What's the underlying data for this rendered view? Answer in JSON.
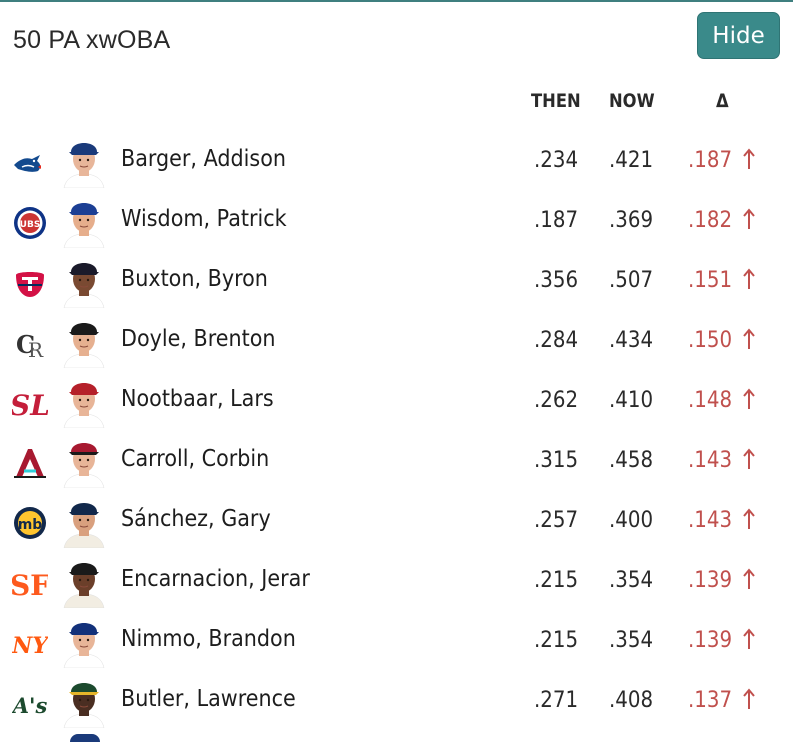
{
  "title": "50 PA xwOBA",
  "hide_label": "Hide",
  "columns": {
    "then": "THEN",
    "now": "NOW",
    "delta": "Δ"
  },
  "colors": {
    "accent": "#3a8a8a",
    "increase": "#c0504d"
  },
  "rows": [
    {
      "team_icon": "blue-jays-logo-icon",
      "name": "Barger, Addison",
      "then": ".234",
      "now": ".421",
      "delta": ".187",
      "cap": "#1a3a7a",
      "bill": "#1a3a7a",
      "skin": "#e8b69a",
      "jersey": "#ffffff"
    },
    {
      "team_icon": "cubs-logo-icon",
      "name": "Wisdom, Patrick",
      "then": ".187",
      "now": ".369",
      "delta": ".182",
      "cap": "#1c3f94",
      "bill": "#1c3f94",
      "skin": "#e6ae8c",
      "jersey": "#ffffff"
    },
    {
      "team_icon": "twins-logo-icon",
      "name": "Buxton, Byron",
      "then": ".356",
      "now": ".507",
      "delta": ".151",
      "cap": "#1a1a2a",
      "bill": "#1a1a2a",
      "skin": "#7a4a32",
      "jersey": "#ffffff"
    },
    {
      "team_icon": "rockies-logo-icon",
      "name": "Doyle, Brenton",
      "then": ".284",
      "now": ".434",
      "delta": ".150",
      "cap": "#1a1a1a",
      "bill": "#1a1a1a",
      "skin": "#e6b090",
      "jersey": "#ffffff"
    },
    {
      "team_icon": "cardinals-logo-icon",
      "name": "Nootbaar, Lars",
      "then": ".262",
      "now": ".410",
      "delta": ".148",
      "cap": "#b5202a",
      "bill": "#b5202a",
      "skin": "#e8b598",
      "jersey": "#ffffff"
    },
    {
      "team_icon": "diamondbacks-logo-icon",
      "name": "Carroll, Corbin",
      "then": ".315",
      "now": ".458",
      "delta": ".143",
      "cap": "#a71930",
      "bill": "#1a1a1a",
      "skin": "#e8b598",
      "jersey": "#ffffff"
    },
    {
      "team_icon": "brewers-logo-icon",
      "name": "Sánchez, Gary",
      "then": ".257",
      "now": ".400",
      "delta": ".143",
      "cap": "#12284b",
      "bill": "#12284b",
      "skin": "#d9a07e",
      "jersey": "#f2ede2"
    },
    {
      "team_icon": "giants-logo-icon",
      "name": "Encarnacion, Jerar",
      "then": ".215",
      "now": ".354",
      "delta": ".139",
      "cap": "#1a1a1a",
      "bill": "#1a1a1a",
      "skin": "#6b3f2a",
      "jersey": "#f2ede2"
    },
    {
      "team_icon": "mets-logo-icon",
      "name": "Nimmo, Brandon",
      "then": ".215",
      "now": ".354",
      "delta": ".139",
      "cap": "#13317a",
      "bill": "#13317a",
      "skin": "#e8b598",
      "jersey": "#ffffff"
    },
    {
      "team_icon": "athletics-logo-icon",
      "name": "Butler, Lawrence",
      "then": ".271",
      "now": ".408",
      "delta": ".137",
      "cap": "#1c4a2e",
      "bill": "#e5b52a",
      "skin": "#4a2e22",
      "jersey": "#ffffff"
    }
  ]
}
